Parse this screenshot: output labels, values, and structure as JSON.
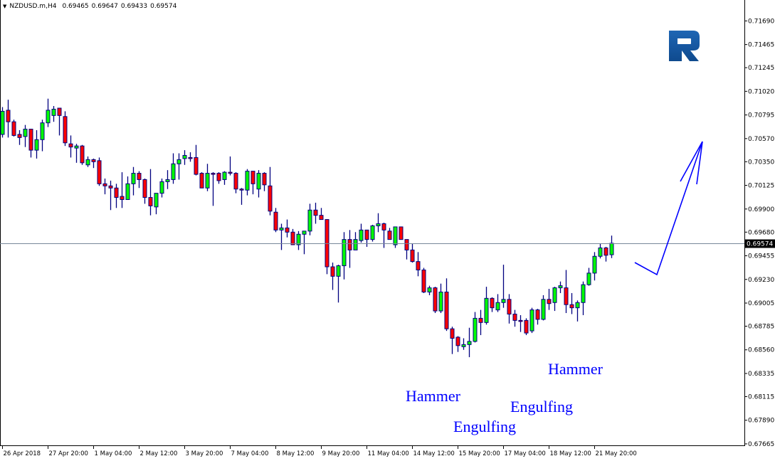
{
  "header": {
    "symbol": "NZDUSD.m,H4",
    "open": "0.69465",
    "high": "0.69647",
    "low": "0.69433",
    "close": "0.69574"
  },
  "annotations": [
    {
      "text": "Hammer"
    },
    {
      "text": "Engulfing"
    },
    {
      "text": "Engulfing"
    },
    {
      "text": "Hammer"
    }
  ],
  "colors": {
    "bull": "#00ff00",
    "bear": "#ff0000",
    "outline": "#000080",
    "annotation": "#0000ff",
    "price_line": "#778899",
    "logo": "#1a5ba6"
  },
  "logo_icon": "r-letter-logo",
  "chart_data": {
    "type": "candlestick",
    "title": "NZDUSD.m,H4",
    "current_price": 0.69574,
    "current_price_label": "0.69574",
    "ylim": [
      0.67665,
      0.7169
    ],
    "y_ticks": [
      "0.71690",
      "0.71465",
      "0.71245",
      "0.71020",
      "0.70795",
      "0.70570",
      "0.70350",
      "0.70125",
      "0.69900",
      "0.69680",
      "0.69455",
      "0.69230",
      "0.69005",
      "0.68785",
      "0.68560",
      "0.68335",
      "0.68115",
      "0.67890",
      "0.67665"
    ],
    "x_ticks": [
      "26 Apr 2018",
      "27 Apr 20:00",
      "1 May 04:00",
      "2 May 12:00",
      "3 May 20:00",
      "7 May 04:00",
      "8 May 12:00",
      "9 May 20:00",
      "11 May 04:00",
      "14 May 12:00",
      "15 May 20:00",
      "17 May 04:00",
      "18 May 12:00",
      "21 May 20:00"
    ],
    "x_tick_every_n_candles": 8,
    "grid": false,
    "ohlc_fields": [
      "open",
      "high",
      "low",
      "close"
    ],
    "candles": [
      [
        0.7061,
        0.7087,
        0.7058,
        0.7083
      ],
      [
        0.7084,
        0.7094,
        0.7058,
        0.7073
      ],
      [
        0.7073,
        0.7075,
        0.7059,
        0.706
      ],
      [
        0.7061,
        0.7065,
        0.7051,
        0.7058
      ],
      [
        0.7059,
        0.707,
        0.7049,
        0.7066
      ],
      [
        0.7066,
        0.7066,
        0.7039,
        0.7046
      ],
      [
        0.7046,
        0.7065,
        0.7038,
        0.7056
      ],
      [
        0.7056,
        0.7075,
        0.7045,
        0.7072
      ],
      [
        0.7072,
        0.7095,
        0.7068,
        0.7084
      ],
      [
        0.7079,
        0.7088,
        0.7073,
        0.7085
      ],
      [
        0.7086,
        0.7086,
        0.706,
        0.7079
      ],
      [
        0.7078,
        0.7083,
        0.705,
        0.7053
      ],
      [
        0.7052,
        0.706,
        0.7039,
        0.7049
      ],
      [
        0.7048,
        0.7052,
        0.7034,
        0.705
      ],
      [
        0.705,
        0.7051,
        0.7032,
        0.7034
      ],
      [
        0.7032,
        0.704,
        0.703,
        0.7037
      ],
      [
        0.7037,
        0.7038,
        0.7029,
        0.7035
      ],
      [
        0.7036,
        0.7039,
        0.7012,
        0.7014
      ],
      [
        0.7014,
        0.7019,
        0.7004,
        0.7012
      ],
      [
        0.7012,
        0.7017,
        0.6989,
        0.701
      ],
      [
        0.701,
        0.7014,
        0.6991,
        0.7001
      ],
      [
        0.7002,
        0.7025,
        0.6991,
        0.6999
      ],
      [
        0.6999,
        0.7021,
        0.6999,
        0.7014
      ],
      [
        0.7014,
        0.703,
        0.7003,
        0.7024
      ],
      [
        0.7024,
        0.7026,
        0.701,
        0.7018
      ],
      [
        0.7018,
        0.7019,
        0.6995,
        0.7001
      ],
      [
        0.7001,
        0.7028,
        0.6984,
        0.6993
      ],
      [
        0.6992,
        0.7005,
        0.6985,
        0.7005
      ],
      [
        0.7005,
        0.7019,
        0.7001,
        0.7016
      ],
      [
        0.7016,
        0.7027,
        0.7009,
        0.7018
      ],
      [
        0.7018,
        0.7043,
        0.7014,
        0.7033
      ],
      [
        0.7033,
        0.7043,
        0.7018,
        0.7037
      ],
      [
        0.7038,
        0.7046,
        0.7032,
        0.7041
      ],
      [
        0.7039,
        0.7044,
        0.7035,
        0.7038
      ],
      [
        0.7039,
        0.7051,
        0.7022,
        0.7023
      ],
      [
        0.7024,
        0.7025,
        0.701,
        0.701
      ],
      [
        0.701,
        0.7033,
        0.7007,
        0.7024
      ],
      [
        0.7024,
        0.7025,
        0.6993,
        0.7023
      ],
      [
        0.7024,
        0.7025,
        0.7014,
        0.7017
      ],
      [
        0.7018,
        0.7026,
        0.7013,
        0.7025
      ],
      [
        0.7025,
        0.704,
        0.7022,
        0.7024
      ],
      [
        0.7024,
        0.7025,
        0.7005,
        0.7009
      ],
      [
        0.7009,
        0.701,
        0.6994,
        0.7008
      ],
      [
        0.7008,
        0.7028,
        0.7003,
        0.7026
      ],
      [
        0.7026,
        0.7026,
        0.7004,
        0.7014
      ],
      [
        0.7009,
        0.7027,
        0.7001,
        0.7024
      ],
      [
        0.7024,
        0.7025,
        0.7007,
        0.7013
      ],
      [
        0.7012,
        0.703,
        0.6984,
        0.6988
      ],
      [
        0.6987,
        0.6991,
        0.6968,
        0.697
      ],
      [
        0.697,
        0.6976,
        0.6951,
        0.6972
      ],
      [
        0.6972,
        0.698,
        0.6963,
        0.6968
      ],
      [
        0.6968,
        0.6971,
        0.6956,
        0.6956
      ],
      [
        0.6956,
        0.6969,
        0.6951,
        0.6966
      ],
      [
        0.6966,
        0.6969,
        0.6947,
        0.6969
      ],
      [
        0.6969,
        0.6995,
        0.6965,
        0.6989
      ],
      [
        0.6989,
        0.6996,
        0.6976,
        0.6984
      ],
      [
        0.6984,
        0.6991,
        0.698,
        0.698
      ],
      [
        0.698,
        0.698,
        0.6928,
        0.6935
      ],
      [
        0.6935,
        0.6939,
        0.6913,
        0.6926
      ],
      [
        0.6926,
        0.6937,
        0.6901,
        0.6936
      ],
      [
        0.6936,
        0.6968,
        0.6923,
        0.6961
      ],
      [
        0.6961,
        0.697,
        0.6934,
        0.6951
      ],
      [
        0.6951,
        0.6968,
        0.6951,
        0.6961
      ],
      [
        0.696,
        0.6976,
        0.6958,
        0.697
      ],
      [
        0.697,
        0.697,
        0.6954,
        0.6961
      ],
      [
        0.6961,
        0.6975,
        0.6959,
        0.6974
      ],
      [
        0.6974,
        0.6986,
        0.6968,
        0.6976
      ],
      [
        0.6976,
        0.6977,
        0.6953,
        0.697
      ],
      [
        0.6969,
        0.6972,
        0.6961,
        0.6961
      ],
      [
        0.6956,
        0.6973,
        0.6953,
        0.6973
      ],
      [
        0.6973,
        0.6973,
        0.6961,
        0.6961
      ],
      [
        0.6961,
        0.6961,
        0.6942,
        0.6951
      ],
      [
        0.6951,
        0.6957,
        0.6939,
        0.694
      ],
      [
        0.694,
        0.6949,
        0.6926,
        0.6932
      ],
      [
        0.6932,
        0.6934,
        0.691,
        0.6911
      ],
      [
        0.6911,
        0.6917,
        0.6908,
        0.6915
      ],
      [
        0.6915,
        0.6916,
        0.6891,
        0.6893
      ],
      [
        0.6893,
        0.6919,
        0.6891,
        0.6911
      ],
      [
        0.6911,
        0.6924,
        0.6874,
        0.6876
      ],
      [
        0.6876,
        0.6878,
        0.6852,
        0.6867
      ],
      [
        0.6868,
        0.6869,
        0.6854,
        0.686
      ],
      [
        0.6859,
        0.6867,
        0.6856,
        0.6861
      ],
      [
        0.6861,
        0.6877,
        0.6849,
        0.6864
      ],
      [
        0.6864,
        0.6892,
        0.6863,
        0.6886
      ],
      [
        0.6886,
        0.6894,
        0.687,
        0.6882
      ],
      [
        0.6882,
        0.6916,
        0.688,
        0.6905
      ],
      [
        0.6905,
        0.6906,
        0.6892,
        0.6896
      ],
      [
        0.6894,
        0.6909,
        0.6892,
        0.6901
      ],
      [
        0.6901,
        0.6937,
        0.6896,
        0.6904
      ],
      [
        0.6904,
        0.6909,
        0.6881,
        0.689
      ],
      [
        0.689,
        0.6894,
        0.6878,
        0.6884
      ],
      [
        0.6884,
        0.6889,
        0.6873,
        0.6883
      ],
      [
        0.6884,
        0.6886,
        0.687,
        0.6872
      ],
      [
        0.6874,
        0.6896,
        0.6872,
        0.6894
      ],
      [
        0.6894,
        0.6895,
        0.688,
        0.6885
      ],
      [
        0.6885,
        0.6908,
        0.6884,
        0.6904
      ],
      [
        0.6904,
        0.6914,
        0.6894,
        0.69
      ],
      [
        0.6901,
        0.6916,
        0.6893,
        0.6915
      ],
      [
        0.6915,
        0.6921,
        0.691,
        0.6917
      ],
      [
        0.6915,
        0.6932,
        0.6891,
        0.6899
      ],
      [
        0.6899,
        0.691,
        0.689,
        0.6896
      ],
      [
        0.6896,
        0.6903,
        0.6883,
        0.6901
      ],
      [
        0.6901,
        0.6921,
        0.6889,
        0.6918
      ],
      [
        0.6918,
        0.6934,
        0.6917,
        0.6929
      ],
      [
        0.6929,
        0.6949,
        0.6922,
        0.6945
      ],
      [
        0.6945,
        0.6957,
        0.6943,
        0.6953
      ],
      [
        0.6953,
        0.6954,
        0.694,
        0.6946
      ],
      [
        0.69465,
        0.69647,
        0.69433,
        0.69574
      ]
    ]
  }
}
